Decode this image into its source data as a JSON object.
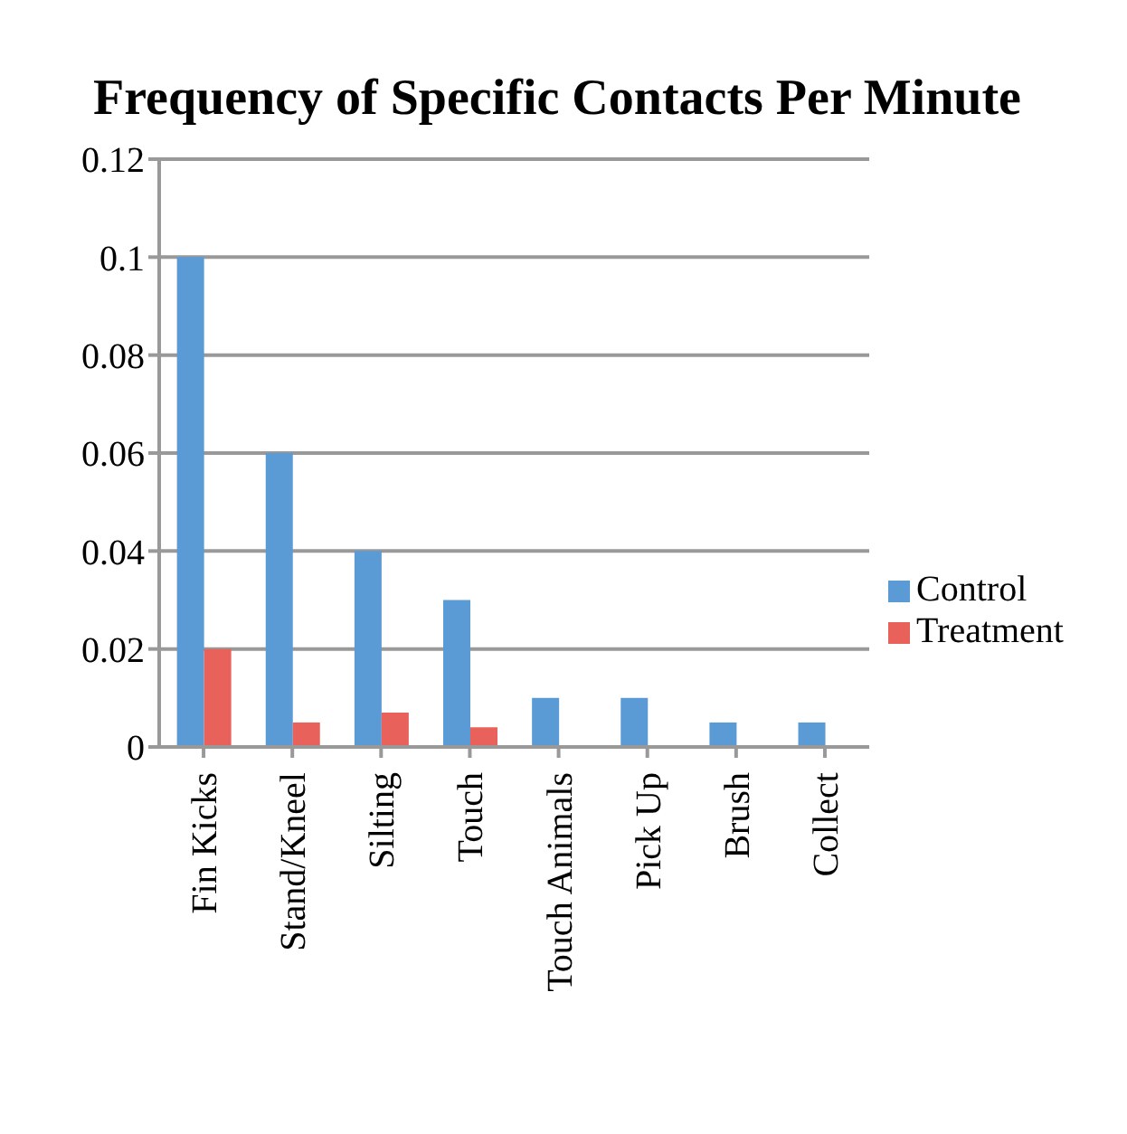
{
  "chart_data": {
    "type": "bar",
    "title": "Frequency of Specific Contacts Per Minute",
    "categories": [
      "Fin Kicks",
      "Stand/Kneel",
      "Silting",
      "Touch",
      "Touch Animals",
      "Pick Up",
      "Brush",
      "Collect"
    ],
    "series": [
      {
        "name": "Control",
        "color": "#5b9bd5",
        "values": [
          0.1,
          0.06,
          0.04,
          0.03,
          0.01,
          0.01,
          0.005,
          0.005
        ]
      },
      {
        "name": "Treatment",
        "color": "#e8615a",
        "values": [
          0.02,
          0.005,
          0.007,
          0.004,
          0,
          0,
          0,
          0
        ]
      }
    ],
    "ylim": [
      0,
      0.12
    ],
    "yticks": [
      0,
      0.02,
      0.04,
      0.06,
      0.08,
      0.1,
      0.12
    ],
    "grid": "y",
    "legend": "right"
  }
}
